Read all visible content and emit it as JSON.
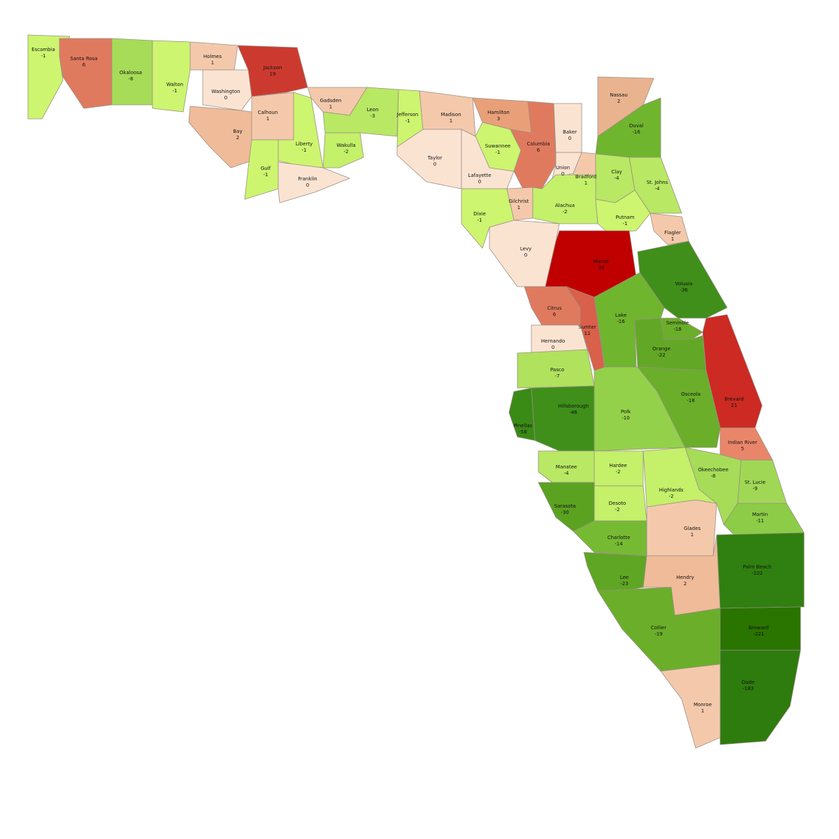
{
  "counties": [
    {
      "name": "Escambia",
      "value": -1,
      "color": "#cdf56f"
    },
    {
      "name": "Santa Rosa",
      "value": 6,
      "color": "#e07a5f"
    },
    {
      "name": "Okaloosa",
      "value": -8,
      "color": "#a6dc58"
    },
    {
      "name": "Walton",
      "value": -1,
      "color": "#cdf56f"
    },
    {
      "name": "Holmes",
      "value": 1,
      "color": "#f4c9ab"
    },
    {
      "name": "Jackson",
      "value": 19,
      "color": "#cc3a2f"
    },
    {
      "name": "Washington",
      "value": 0,
      "color": "#fbe3d2"
    },
    {
      "name": "Bay",
      "value": 2,
      "color": "#f0bb98"
    },
    {
      "name": "Calhoun",
      "value": 1,
      "color": "#f4c9ab"
    },
    {
      "name": "Gulf",
      "value": -1,
      "color": "#cdf56f"
    },
    {
      "name": "Liberty",
      "value": -1,
      "color": "#cdf56f"
    },
    {
      "name": "Franklin",
      "value": 0,
      "color": "#fbe3d2"
    },
    {
      "name": "Gadsden",
      "value": 1,
      "color": "#f4c9ab"
    },
    {
      "name": "Leon",
      "value": -3,
      "color": "#b8e864"
    },
    {
      "name": "Wakulla",
      "value": -2,
      "color": "#c4f06a"
    },
    {
      "name": "Jefferson",
      "value": -1,
      "color": "#cdf56f"
    },
    {
      "name": "Madison",
      "value": 1,
      "color": "#f4c9ab"
    },
    {
      "name": "Taylor",
      "value": 0,
      "color": "#fbe3d2"
    },
    {
      "name": "Hamilton",
      "value": 3,
      "color": "#e9a078"
    },
    {
      "name": "Suwannee",
      "value": -1,
      "color": "#cdf56f"
    },
    {
      "name": "Lafayette",
      "value": 0,
      "color": "#fbe3d2"
    },
    {
      "name": "Columbia",
      "value": 6,
      "color": "#e07a5f"
    },
    {
      "name": "Baker",
      "value": 0,
      "color": "#fbe3d2"
    },
    {
      "name": "Union",
      "value": 0,
      "color": "#fbe3d2"
    },
    {
      "name": "Bradford",
      "value": 1,
      "color": "#f4c9ab"
    },
    {
      "name": "Nassau",
      "value": 2,
      "color": "#eab38f"
    },
    {
      "name": "Duval",
      "value": -16,
      "color": "#6fb52e"
    },
    {
      "name": "Clay",
      "value": -4,
      "color": "#b8e864"
    },
    {
      "name": "St. Johns",
      "value": -4,
      "color": "#b8e864"
    },
    {
      "name": "Gilchrist",
      "value": 1,
      "color": "#f4c9ab"
    },
    {
      "name": "Alachua",
      "value": -2,
      "color": "#c4f06a"
    },
    {
      "name": "Putnam",
      "value": -1,
      "color": "#cdf56f"
    },
    {
      "name": "Dixie",
      "value": -1,
      "color": "#cdf56f"
    },
    {
      "name": "Levy",
      "value": 0,
      "color": "#fbe3d2"
    },
    {
      "name": "Marion",
      "value": 34,
      "color": "#c00000"
    },
    {
      "name": "Flagler",
      "value": 1,
      "color": "#f4c9ab"
    },
    {
      "name": "Volusia",
      "value": -36,
      "color": "#3f8f1a"
    },
    {
      "name": "Citrus",
      "value": 6,
      "color": "#e07a5f"
    },
    {
      "name": "Sumter",
      "value": 11,
      "color": "#d9604a"
    },
    {
      "name": "Hernando",
      "value": 0,
      "color": "#fbe3d2"
    },
    {
      "name": "Lake",
      "value": -16,
      "color": "#6fb52e"
    },
    {
      "name": "Seminole",
      "value": -18,
      "color": "#6aae2a"
    },
    {
      "name": "Orange",
      "value": -22,
      "color": "#62a826"
    },
    {
      "name": "Brevard",
      "value": 21,
      "color": "#cc2a22"
    },
    {
      "name": "Pasco",
      "value": -7,
      "color": "#b0e25e"
    },
    {
      "name": "Hillsborough",
      "value": -46,
      "color": "#3f8f1a"
    },
    {
      "name": "Pinellas",
      "value": -58,
      "color": "#3a8a16"
    },
    {
      "name": "Polk",
      "value": -10,
      "color": "#94d14a"
    },
    {
      "name": "Osceola",
      "value": -18,
      "color": "#6aae2a"
    },
    {
      "name": "Indian River",
      "value": 5,
      "color": "#e9866a"
    },
    {
      "name": "Manatee",
      "value": -4,
      "color": "#b8e864"
    },
    {
      "name": "Hardee",
      "value": -2,
      "color": "#c4f06a"
    },
    {
      "name": "Highlands",
      "value": -2,
      "color": "#c4f06a"
    },
    {
      "name": "Okeechobee",
      "value": -8,
      "color": "#a6dc58"
    },
    {
      "name": "St. Lucie",
      "value": -9,
      "color": "#a0d855"
    },
    {
      "name": "Desoto",
      "value": -2,
      "color": "#c4f06a"
    },
    {
      "name": "Sarasota",
      "value": -30,
      "color": "#5aa220"
    },
    {
      "name": "Martin",
      "value": -11,
      "color": "#8ccc46"
    },
    {
      "name": "Glades",
      "value": 1,
      "color": "#f4c9ab"
    },
    {
      "name": "Charlotte",
      "value": -14,
      "color": "#76ba33"
    },
    {
      "name": "Lee",
      "value": -23,
      "color": "#5fa624"
    },
    {
      "name": "Hendry",
      "value": 2,
      "color": "#f0bb98"
    },
    {
      "name": "Palm Beach",
      "value": -102,
      "color": "#2f8010"
    },
    {
      "name": "Collier",
      "value": -19,
      "color": "#6aae2a"
    },
    {
      "name": "Broward",
      "value": -221,
      "color": "#2a7400"
    },
    {
      "name": "Dade",
      "value": -183,
      "color": "#2e7c0d"
    },
    {
      "name": "Monroe",
      "value": 1,
      "color": "#f4c9ab"
    }
  ]
}
